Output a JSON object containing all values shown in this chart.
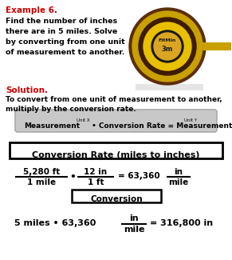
{
  "title": "Example 6.",
  "problem_line1": "Find the number of inches",
  "problem_line2": "there are in 5 miles. Solve",
  "problem_line3": "by converting from one unit",
  "problem_line4": "of measurement to another.",
  "solution_label": "Solution.",
  "solution_text1": "To convert from one unit of measurement to another,",
  "solution_text2": "multiply by the conversion rate.",
  "box1_title": "Conversion Rate (miles to inches)",
  "box2_title": "Conversion",
  "final_left": "5 miles • 63,360",
  "final_eq": "= 316,800 in",
  "bg_color": "#ffffff",
  "title_color": "#cc0000",
  "solution_color": "#cc0000",
  "text_color": "#000000",
  "formula_box_gray": "#c8c8c8",
  "formula_box_edge": "#888888"
}
